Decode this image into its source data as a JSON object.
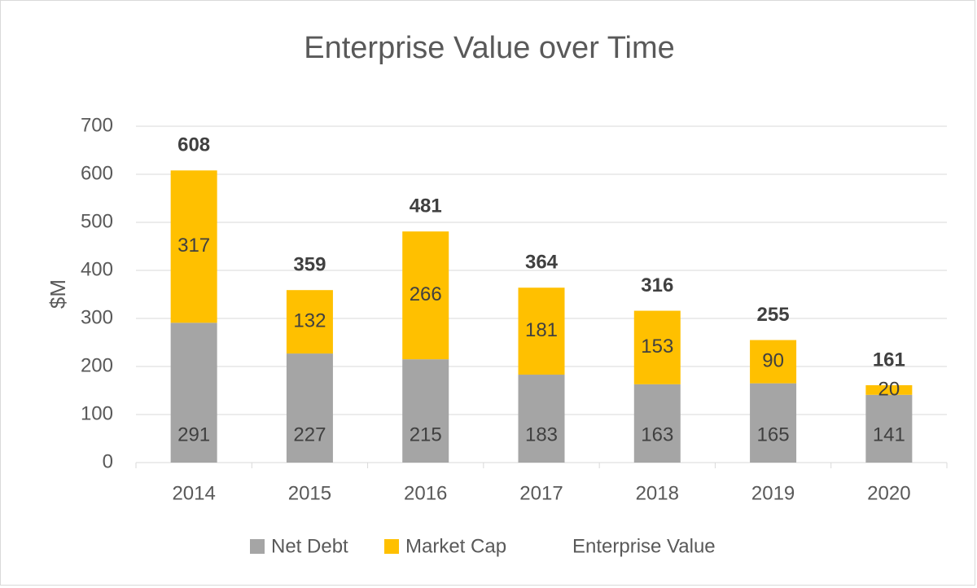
{
  "chart_data": {
    "type": "bar",
    "stacked": true,
    "title": "Enterprise Value over Time",
    "xlabel": "",
    "ylabel": "$M",
    "ylim": [
      0,
      700
    ],
    "yticks": [
      "0",
      "100",
      "200",
      "300",
      "400",
      "500",
      "600",
      "700"
    ],
    "categories": [
      "2014",
      "2015",
      "2016",
      "2017",
      "2018",
      "2019",
      "2020"
    ],
    "series": [
      {
        "name": "Net Debt",
        "color": "#a5a5a5",
        "values": [
          291,
          227,
          215,
          183,
          163,
          165,
          141
        ]
      },
      {
        "name": "Market Cap",
        "color": "#ffc000",
        "values": [
          317,
          132,
          266,
          181,
          153,
          90,
          20
        ]
      }
    ],
    "totals": {
      "name": "Enterprise Value",
      "values": [
        608,
        359,
        481,
        364,
        316,
        255,
        161
      ]
    },
    "grid": true,
    "legend_position": "bottom"
  }
}
